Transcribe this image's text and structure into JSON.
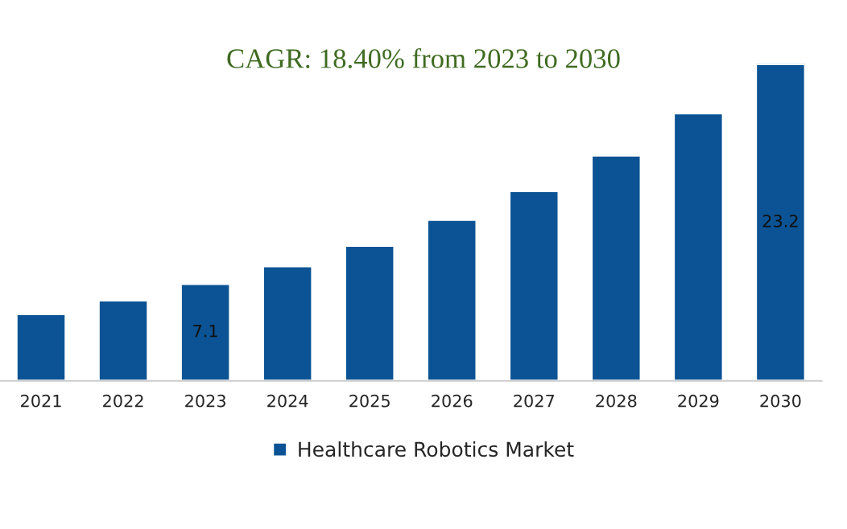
{
  "chart_data": {
    "type": "bar",
    "title": "CAGR: 18.40% from 2023 to 2030",
    "categories": [
      "2021",
      "2022",
      "2023",
      "2024",
      "2025",
      "2026",
      "2027",
      "2028",
      "2029",
      "2030"
    ],
    "series": [
      {
        "name": "Healthcare Robotics Market",
        "color": "#0b5394",
        "values": [
          4.9,
          5.9,
          7.1,
          8.4,
          9.9,
          11.8,
          13.9,
          16.5,
          19.6,
          23.2
        ],
        "value_labels": [
          null,
          null,
          "7.1",
          null,
          null,
          null,
          null,
          null,
          null,
          "23.2"
        ]
      }
    ],
    "legend": "bottom",
    "grid": false
  }
}
